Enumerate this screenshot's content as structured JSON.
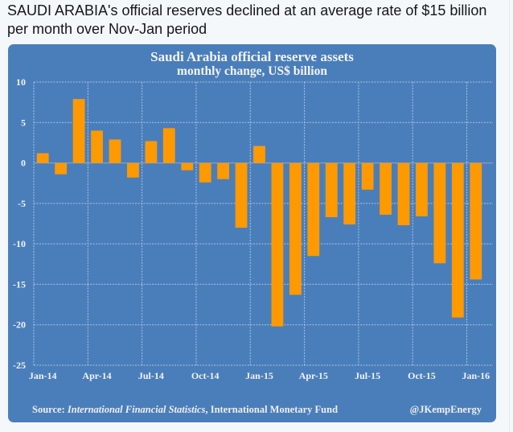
{
  "tweet": {
    "text": "SAUDI ARABIA's official reserves declined at an average rate of $15 billion per month over Nov-Jan period"
  },
  "colors": {
    "background": "#4a7ebb",
    "bar": "#ff9900",
    "grid": "#a9c2e0",
    "text": "#f2f2f2"
  },
  "chart_data": {
    "type": "bar",
    "title": "Saudi Arabia official reserve assets",
    "subtitle": "monthly change, US$ billion",
    "xlabel": "",
    "ylabel": "",
    "ylim": [
      -25,
      10
    ],
    "yticks": [
      10,
      5,
      0,
      -5,
      -10,
      -15,
      -20,
      -25
    ],
    "grid": true,
    "categories": [
      "Jan-14",
      "Feb-14",
      "Mar-14",
      "Apr-14",
      "May-14",
      "Jun-14",
      "Jul-14",
      "Aug-14",
      "Sep-14",
      "Oct-14",
      "Nov-14",
      "Dec-14",
      "Jan-15",
      "Feb-15",
      "Mar-15",
      "Apr-15",
      "May-15",
      "Jun-15",
      "Jul-15",
      "Aug-15",
      "Sep-15",
      "Oct-15",
      "Nov-15",
      "Dec-15",
      "Jan-16"
    ],
    "values": [
      1.2,
      -1.4,
      7.9,
      4.0,
      2.9,
      -1.8,
      2.7,
      4.3,
      -0.9,
      -2.4,
      -2.0,
      -8.0,
      2.1,
      -20.2,
      -16.3,
      -11.5,
      -6.7,
      -7.6,
      -3.3,
      -6.4,
      -7.7,
      -6.6,
      -12.4,
      -19.1,
      -14.4
    ],
    "xtick_labels": [
      "Jan-14",
      "Apr-14",
      "Jul-14",
      "Oct-14",
      "Jan-15",
      "Apr-15",
      "Jul-15",
      "Oct-15",
      "Jan-16"
    ],
    "source_prefix": "Source: ",
    "source_italic": "International Financial Statistics",
    "source_suffix": ", International Monetary Fund",
    "credit": "@JKempEnergy"
  }
}
